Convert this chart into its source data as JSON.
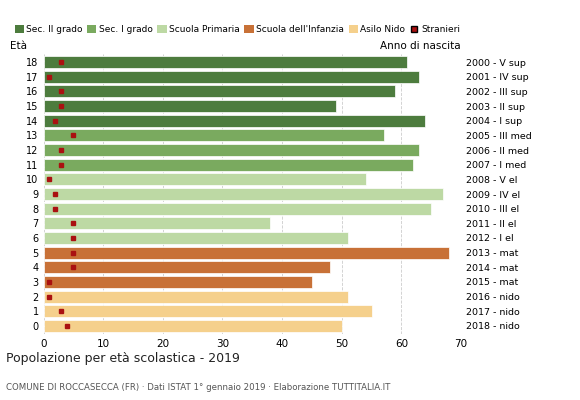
{
  "ages": [
    18,
    17,
    16,
    15,
    14,
    13,
    12,
    11,
    10,
    9,
    8,
    7,
    6,
    5,
    4,
    3,
    2,
    1,
    0
  ],
  "anno": [
    "2000 - V sup",
    "2001 - IV sup",
    "2002 - III sup",
    "2003 - II sup",
    "2004 - I sup",
    "2005 - III med",
    "2006 - II med",
    "2007 - I med",
    "2008 - V el",
    "2009 - IV el",
    "2010 - III el",
    "2011 - II el",
    "2012 - I el",
    "2013 - mat",
    "2014 - mat",
    "2015 - mat",
    "2016 - nido",
    "2017 - nido",
    "2018 - nido"
  ],
  "values": [
    61,
    63,
    59,
    49,
    64,
    57,
    63,
    62,
    54,
    67,
    65,
    38,
    51,
    68,
    48,
    45,
    51,
    55,
    50
  ],
  "foreigners": [
    3,
    1,
    3,
    3,
    2,
    5,
    3,
    3,
    1,
    2,
    2,
    5,
    5,
    5,
    5,
    1,
    1,
    3,
    4
  ],
  "bar_colors": [
    "#4d7c3e",
    "#4d7c3e",
    "#4d7c3e",
    "#4d7c3e",
    "#4d7c3e",
    "#7aaa5f",
    "#7aaa5f",
    "#7aaa5f",
    "#bdd9a4",
    "#bdd9a4",
    "#bdd9a4",
    "#bdd9a4",
    "#bdd9a4",
    "#c87137",
    "#c87137",
    "#c87137",
    "#f5d08c",
    "#f5d08c",
    "#f5d08c"
  ],
  "foreign_color": "#aa1111",
  "bg_color": "#ffffff",
  "grid_color": "#cccccc",
  "title": "Popolazione per età scolastica - 2019",
  "subtitle": "COMUNE DI ROCCASECCA (FR) · Dati ISTAT 1° gennaio 2019 · Elaborazione TUTTITALIA.IT",
  "ylabel": "Età",
  "right_label": "Anno di nascita",
  "xlim": [
    0,
    70
  ],
  "xticks": [
    0,
    10,
    20,
    30,
    40,
    50,
    60,
    70
  ],
  "legend_labels": [
    "Sec. II grado",
    "Sec. I grado",
    "Scuola Primaria",
    "Scuola dell'Infanzia",
    "Asilo Nido",
    "Stranieri"
  ],
  "legend_colors": [
    "#4d7c3e",
    "#7aaa5f",
    "#bdd9a4",
    "#c87137",
    "#f5d08c",
    "#aa1111"
  ]
}
